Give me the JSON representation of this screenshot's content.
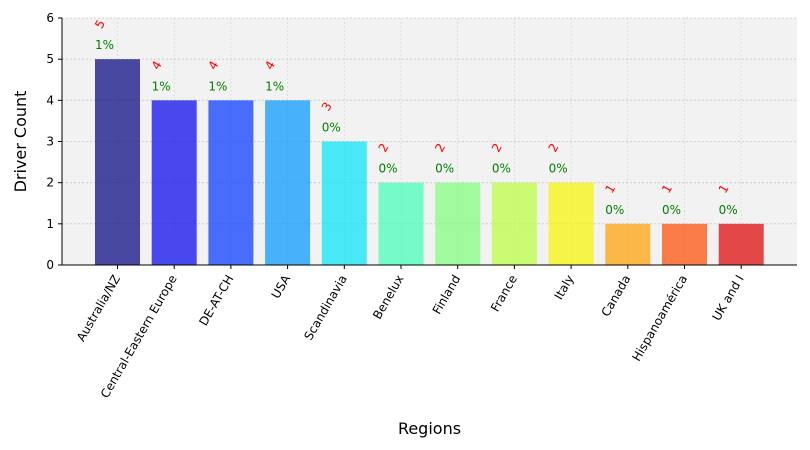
{
  "chart_data": {
    "type": "bar",
    "title": "",
    "xlabel": "Regions",
    "ylabel": "Driver Count",
    "ylim": [
      0,
      6
    ],
    "yticks": [
      0,
      1,
      2,
      3,
      4,
      5,
      6
    ],
    "grid": true,
    "categories": [
      "Australia/NZ",
      "Central-Eastern Europe",
      "DE-AT-CH",
      "USA",
      "Scandinavia",
      "Benelux",
      "Finland",
      "France",
      "Italy",
      "Canada",
      "Hispanoamérica",
      "UK and I"
    ],
    "values": [
      5,
      4,
      4,
      4,
      3,
      2,
      2,
      2,
      2,
      1,
      1,
      1
    ],
    "count_labels": [
      "5",
      "4",
      "4",
      "4",
      "3",
      "2",
      "2",
      "2",
      "2",
      "1",
      "1",
      "1"
    ],
    "percent_labels": [
      "1%",
      "1%",
      "1%",
      "1%",
      "0%",
      "0%",
      "0%",
      "0%",
      "0%",
      "0%",
      "0%",
      "0%"
    ],
    "colors": [
      "#00007f",
      "#0000ed",
      "#0033ff",
      "#0095ff",
      "#00e4f8",
      "#40ffb7",
      "#7dff7a",
      "#baff3c",
      "#f8f500",
      "#ff9f00",
      "#ff4a00",
      "#dd0000"
    ],
    "bar_alpha": 0.7,
    "plot_background": "#f2f2f2",
    "count_label_color": "#ff0000",
    "percent_label_color": "#008000"
  }
}
